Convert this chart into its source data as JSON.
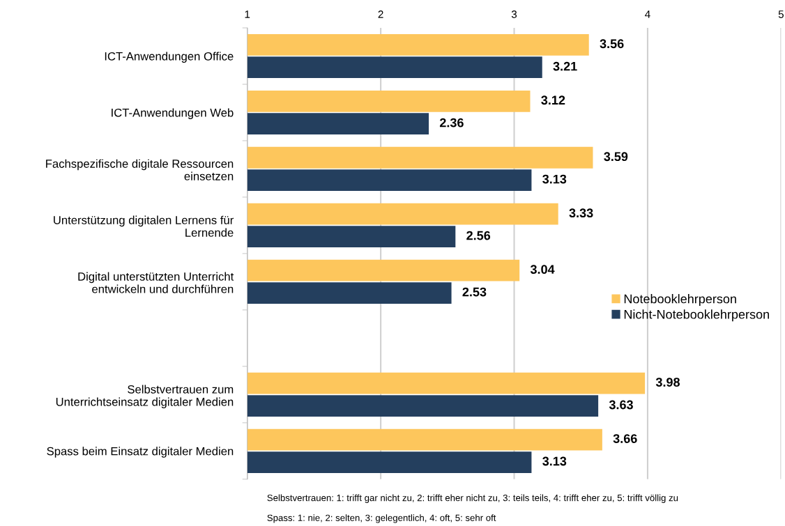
{
  "chart_data": {
    "type": "bar",
    "orientation": "horizontal",
    "categories": [
      "ICT-Anwendungen Office",
      "ICT-Anwendungen Web",
      "Fachspezifische digitale Ressourcen einsetzen",
      "Unterstützung digitalen Lernens für Lernende",
      "Digital unterstützten Unterricht entwickeln und durchführen",
      null,
      "Selbstvertrauen zum Unterrichtseinsatz digitaler Medien",
      "Spass beim Einsatz digitaler Medien"
    ],
    "series": [
      {
        "name": "Notebooklehrperson",
        "color": "#fdc65c",
        "values": [
          3.56,
          3.12,
          3.59,
          3.33,
          3.04,
          null,
          3.98,
          3.66
        ]
      },
      {
        "name": "Nicht-Notebooklehrperson",
        "color": "#243f5e",
        "values": [
          3.21,
          2.36,
          3.13,
          2.56,
          2.53,
          null,
          3.63,
          3.13
        ]
      }
    ],
    "xlim": [
      1,
      5
    ],
    "xticks": [
      1,
      2,
      3,
      4,
      5
    ],
    "grid": "x",
    "legend": "right",
    "data_labels": true,
    "annotations": [
      "Selbstvertrauen: 1: trifft gar nicht zu, 2: trifft eher nicht zu, 3: teils teils, 4: trifft eher zu, 5: trifft völlig zu",
      "Spass: 1: nie, 2: selten, 3: gelegentlich, 4: oft, 5: sehr oft"
    ]
  }
}
